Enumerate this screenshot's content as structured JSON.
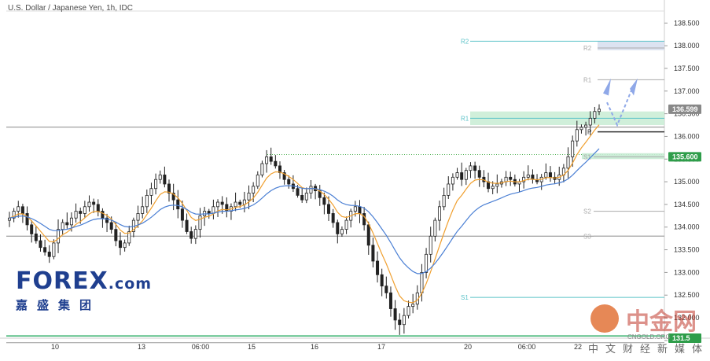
{
  "chart_data": {
    "type": "candlestick",
    "title": "U.S. Dollar / Japanese Yen, 1h, IDC",
    "ylim": [
      131.55,
      138.8
    ],
    "y_ticks": [
      "138.500",
      "138.000",
      "137.500",
      "137.000",
      "136.500",
      "136.000",
      "135.500",
      "135.000",
      "134.500",
      "134.000",
      "133.500",
      "133.000",
      "132.500",
      "132.000",
      "131.500"
    ],
    "x_ticks": [
      "10",
      "13",
      "06:00",
      "15",
      "16",
      "17",
      "20",
      "06:00",
      "22"
    ],
    "current_price": "136.599",
    "marked_price": "135.600",
    "bottom_price_label": "131.5",
    "close_series": [
      134.2,
      134.35,
      134.45,
      134.3,
      134.05,
      133.85,
      133.7,
      133.55,
      133.45,
      133.35,
      133.65,
      133.95,
      134.1,
      134.05,
      134.2,
      134.35,
      134.3,
      134.45,
      134.55,
      134.5,
      134.35,
      134.2,
      134.1,
      133.95,
      133.7,
      133.55,
      133.65,
      133.9,
      134.15,
      134.3,
      134.45,
      134.7,
      134.85,
      135.05,
      135.15,
      134.95,
      134.75,
      134.6,
      134.4,
      134.15,
      133.9,
      133.75,
      133.95,
      134.25,
      134.35,
      134.3,
      134.45,
      134.55,
      134.5,
      134.35,
      134.45,
      134.55,
      134.5,
      134.6,
      134.75,
      134.9,
      135.15,
      135.4,
      135.55,
      135.45,
      135.35,
      135.2,
      135.05,
      134.95,
      134.85,
      134.7,
      134.6,
      134.75,
      134.9,
      134.8,
      134.65,
      134.5,
      134.3,
      134.1,
      133.85,
      133.95,
      134.15,
      134.35,
      134.45,
      134.3,
      134.05,
      133.6,
      133.25,
      132.95,
      132.7,
      132.55,
      132.2,
      131.95,
      131.85,
      132.05,
      132.25,
      132.3,
      132.55,
      133.0,
      133.4,
      133.8,
      134.15,
      134.45,
      134.7,
      134.95,
      135.1,
      135.2,
      135.05,
      135.25,
      135.35,
      135.25,
      135.1,
      135.0,
      134.85,
      134.9,
      134.95,
      135.0,
      135.1,
      135.05,
      134.95,
      135.0,
      135.1,
      135.15,
      135.05,
      135.0,
      135.1,
      135.2,
      135.1,
      135.05,
      135.15,
      135.3,
      135.55,
      135.9,
      136.15,
      136.2,
      136.25,
      136.4,
      136.55,
      136.6
    ],
    "levels": [
      {
        "label": "R2",
        "price": 138.1,
        "color": "#5bc2c8"
      },
      {
        "label": "R2",
        "price": 137.95,
        "color": "#aaaaaa"
      },
      {
        "label": "R1",
        "price": 137.25,
        "color": "#aaaaaa"
      },
      {
        "label": "R1",
        "price": 136.4,
        "color": "#5bc2c8"
      },
      {
        "label": "P",
        "price": 136.1,
        "color": "#333333"
      },
      {
        "label": "S1",
        "price": 135.55,
        "color": "#aaaaaa"
      },
      {
        "label": "S2",
        "price": 134.35,
        "color": "#aaaaaa"
      },
      {
        "label": "S3",
        "price": 133.8,
        "color": "#aaaaaa"
      },
      {
        "label": "S1",
        "price": 132.45,
        "color": "#5bc2c8"
      }
    ],
    "legend": "none",
    "grid": false
  },
  "logo": {
    "main": "FOREX",
    "dotcom": ".com",
    "sub": "嘉盛集团"
  },
  "watermark": {
    "title": "中金网",
    "url": "CNGOLD.ORG",
    "sub": "中文财经新媒体"
  }
}
